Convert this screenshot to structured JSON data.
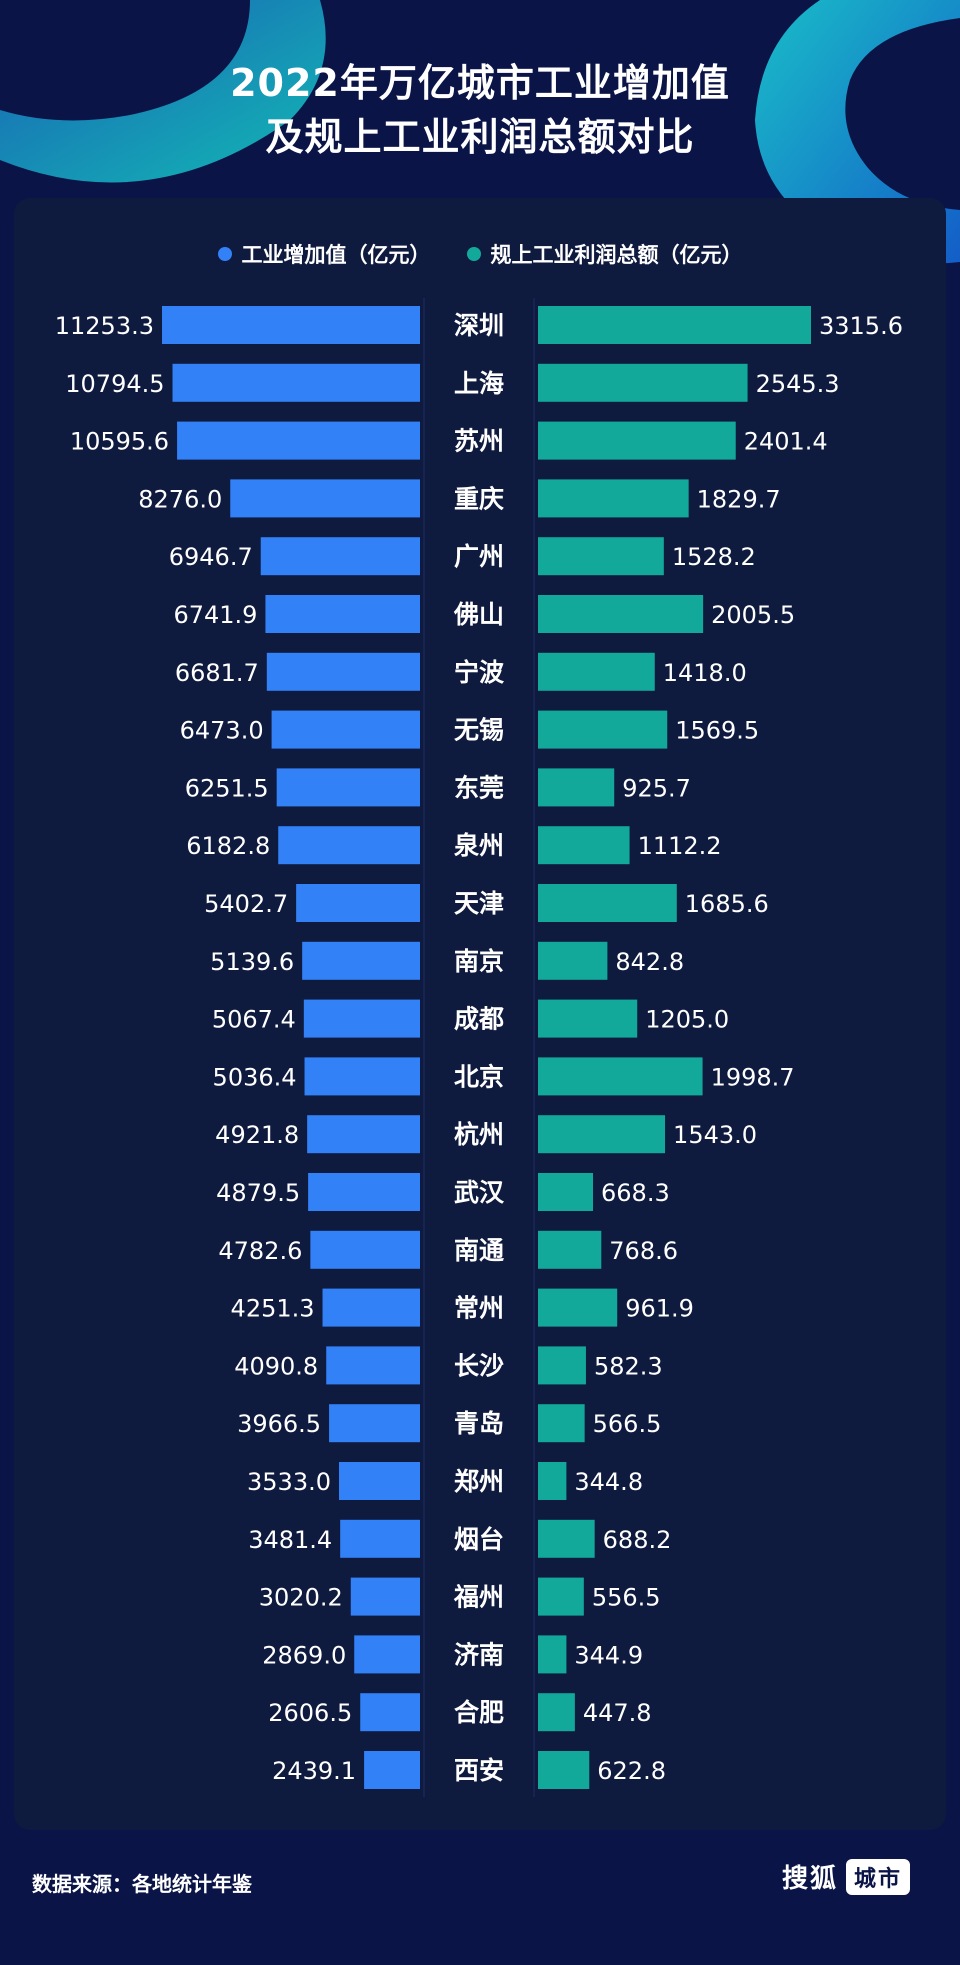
{
  "title_line1": "2022年万亿城市工业增加值",
  "title_line2": "及规上工业利润总额对比",
  "source": "数据来源：各地统计年鉴",
  "logo": {
    "text": "搜狐",
    "box": "城市"
  },
  "colors": {
    "background": "#0b1447",
    "panel": "#0f1a3f",
    "left_bar": "#3381f7",
    "right_bar": "#12a99a"
  },
  "chart_data": {
    "type": "bar",
    "orientation": "horizontal-butterfly",
    "categories": [
      "深圳",
      "上海",
      "苏州",
      "重庆",
      "广州",
      "佛山",
      "宁波",
      "无锡",
      "东莞",
      "泉州",
      "天津",
      "南京",
      "成都",
      "北京",
      "杭州",
      "武汉",
      "南通",
      "常州",
      "长沙",
      "青岛",
      "郑州",
      "烟台",
      "福州",
      "济南",
      "合肥",
      "西安"
    ],
    "series": [
      {
        "name": "工业增加值（亿元）",
        "values": [
          11253.3,
          10794.5,
          10595.6,
          8276.0,
          6946.7,
          6741.9,
          6681.7,
          6473.0,
          6251.5,
          6182.8,
          5402.7,
          5139.6,
          5067.4,
          5036.4,
          4921.8,
          4879.5,
          4782.6,
          4251.3,
          4090.8,
          3966.5,
          3533.0,
          3481.4,
          3020.2,
          2869.0,
          2606.5,
          2439.1
        ],
        "labels": [
          "11253.3",
          "10794.5",
          "10595.6",
          "8276.0",
          "6946.7",
          "6741.9",
          "6681.7",
          "6473.0",
          "6251.5",
          "6182.8",
          "5402.7",
          "5139.6",
          "5067.4",
          "5036.4",
          "4921.8",
          "4879.5",
          "4782.6",
          "4251.3",
          "4090.8",
          "3966.5",
          "3533.0",
          "3481.4",
          "3020.2",
          "2869.0",
          "2606.5",
          "2439.1"
        ]
      },
      {
        "name": "规上工业利润总额（亿元）",
        "values": [
          3315.6,
          2545.3,
          2401.4,
          1829.7,
          1528.2,
          2005.5,
          1418.0,
          1569.5,
          925.7,
          1112.2,
          1685.6,
          842.8,
          1205.0,
          1998.7,
          1543.0,
          668.3,
          768.6,
          961.9,
          582.3,
          566.5,
          344.8,
          688.2,
          556.5,
          344.9,
          447.8,
          622.8
        ],
        "labels": [
          "3315.6",
          "2545.3",
          "2401.4",
          "1829.7",
          "1528.2",
          "2005.5",
          "1418.0",
          "1569.5",
          "925.7",
          "1112.2",
          "1685.6",
          "842.8",
          "1205.0",
          "1998.7",
          "1543.0",
          "668.3",
          "768.6",
          "961.9",
          "582.3",
          "566.5",
          "344.8",
          "688.2",
          "556.5",
          "344.9",
          "447.8",
          "622.8"
        ]
      }
    ],
    "legend_position": "top-center",
    "grid": false
  }
}
